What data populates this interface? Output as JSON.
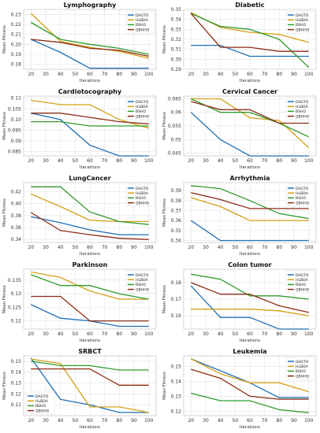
{
  "colors": {
    "DAGTO": "#1f6fb4",
    "HLBDA": "#d4a017",
    "BSHO": "#2e9a2e",
    "QBHHO": "#8b2c14",
    "IGWO_alt": "#8b2c8b"
  },
  "chart_data": [
    {
      "type": "line",
      "title": "Lymphography",
      "xlabel": "Iterations",
      "ylabel": "Mean Fitness",
      "x": [
        20,
        40,
        60,
        80,
        100
      ],
      "xticks": [
        20,
        30,
        40,
        50,
        60,
        70,
        80,
        90,
        100
      ],
      "ylim": [
        0.175,
        0.235
      ],
      "yticks": [
        0.18,
        0.19,
        0.2,
        0.21,
        0.22,
        0.23
      ],
      "legend": "top-right",
      "series": [
        {
          "name": "DAGTO",
          "values": [
            0.205,
            0.192,
            0.176,
            0.176,
            0.176
          ]
        },
        {
          "name": "HLBDA",
          "values": [
            0.231,
            0.203,
            0.197,
            0.193,
            0.186
          ]
        },
        {
          "name": "BSHO",
          "values": [
            0.222,
            0.205,
            0.2,
            0.196,
            0.19
          ]
        },
        {
          "name": "QBHHO",
          "values": [
            0.205,
            0.202,
            0.196,
            0.194,
            0.188
          ]
        }
      ]
    },
    {
      "type": "line",
      "title": "Diabetic",
      "xlabel": "Iterations",
      "ylabel": "Mean Fitness",
      "x": [
        20,
        40,
        60,
        80,
        100
      ],
      "xticks": [
        20,
        30,
        40,
        50,
        60,
        70,
        80,
        90,
        100
      ],
      "ylim": [
        0.29,
        0.35
      ],
      "yticks": [
        0.29,
        0.3,
        0.31,
        0.32,
        0.33,
        0.34,
        0.35
      ],
      "legend": "top-right",
      "series": [
        {
          "name": "DAGTO",
          "values": [
            0.314,
            0.314,
            0.303,
            0.303,
            0.303
          ]
        },
        {
          "name": "HLBDA",
          "values": [
            0.347,
            0.332,
            0.327,
            0.325,
            0.317
          ]
        },
        {
          "name": "BSHO",
          "values": [
            0.346,
            0.333,
            0.33,
            0.32,
            0.292
          ]
        },
        {
          "name": "QBHHO",
          "values": [
            0.346,
            0.312,
            0.312,
            0.308,
            0.308
          ]
        }
      ]
    },
    {
      "type": "line",
      "title": "Cardiotocography",
      "xlabel": "Iterations",
      "ylabel": "Mean Fitness",
      "x": [
        20,
        40,
        60,
        80,
        100
      ],
      "xticks": [
        20,
        30,
        40,
        50,
        60,
        70,
        80,
        90,
        100
      ],
      "ylim": [
        0.083,
        0.111
      ],
      "yticks": [
        0.085,
        0.09,
        0.095,
        0.1,
        0.105,
        0.11
      ],
      "legend": "top-right",
      "series": [
        {
          "name": "DAGTO",
          "values": [
            0.103,
            0.1,
            0.088,
            0.083,
            0.083
          ]
        },
        {
          "name": "HLBDA",
          "values": [
            0.109,
            0.107,
            0.107,
            0.1,
            0.096
          ]
        },
        {
          "name": "BSHO",
          "values": [
            0.099,
            0.099,
            0.097,
            0.097,
            0.097
          ]
        },
        {
          "name": "QBHHO",
          "values": [
            0.103,
            0.103,
            0.101,
            0.099,
            0.098
          ]
        }
      ]
    },
    {
      "type": "line",
      "title": "Cervical Cancer",
      "xlabel": "Iterations",
      "ylabel": "Mean Fitness",
      "x": [
        20,
        40,
        60,
        80,
        100
      ],
      "xticks": [
        20,
        30,
        40,
        50,
        60,
        70,
        80,
        90,
        100
      ],
      "ylim": [
        0.044,
        0.066
      ],
      "yticks": [
        0.045,
        0.05,
        0.055,
        0.06,
        0.065
      ],
      "legend": "top-right",
      "series": [
        {
          "name": "DAGTO",
          "values": [
            0.06,
            0.05,
            0.044,
            0.044,
            0.044
          ]
        },
        {
          "name": "HLBDA",
          "values": [
            0.065,
            0.065,
            0.058,
            0.057,
            0.047
          ]
        },
        {
          "name": "BSHO",
          "values": [
            0.065,
            0.06,
            0.06,
            0.056,
            0.051
          ]
        },
        {
          "name": "QBHHO",
          "values": [
            0.064,
            0.061,
            0.061,
            0.056,
            0.056
          ]
        }
      ]
    },
    {
      "type": "line",
      "title": "LungCancer",
      "xlabel": "Iterations",
      "ylabel": "Mean Fitness",
      "x": [
        20,
        40,
        60,
        80,
        100
      ],
      "xticks": [
        20,
        30,
        40,
        50,
        60,
        70,
        80,
        90,
        100
      ],
      "ylim": [
        0.335,
        0.435
      ],
      "yticks": [
        0.34,
        0.36,
        0.38,
        0.4,
        0.42
      ],
      "legend": "top-right",
      "series": [
        {
          "name": "DAGTO",
          "values": [
            0.378,
            0.368,
            0.356,
            0.348,
            0.348
          ]
        },
        {
          "name": "HLBDA",
          "values": [
            0.416,
            0.395,
            0.372,
            0.37,
            0.37
          ]
        },
        {
          "name": "BSHO",
          "values": [
            0.428,
            0.428,
            0.386,
            0.37,
            0.365
          ]
        },
        {
          "name": "QBHHO",
          "values": [
            0.385,
            0.355,
            0.348,
            0.342,
            0.34
          ]
        }
      ]
    },
    {
      "type": "line",
      "title": "Arrhythmia",
      "xlabel": "Iterations",
      "ylabel": "Mean Fitness",
      "x": [
        20,
        40,
        60,
        80,
        100
      ],
      "xticks": [
        20,
        30,
        40,
        50,
        60,
        70,
        80,
        90,
        100
      ],
      "ylim": [
        0.338,
        0.398
      ],
      "yticks": [
        0.34,
        0.35,
        0.36,
        0.37,
        0.38,
        0.39
      ],
      "legend": "top-right",
      "series": [
        {
          "name": "DAGTO",
          "values": [
            0.36,
            0.34,
            0.34,
            0.34,
            0.34
          ]
        },
        {
          "name": "HLBDA",
          "values": [
            0.383,
            0.374,
            0.36,
            0.36,
            0.36
          ]
        },
        {
          "name": "BSHO",
          "values": [
            0.395,
            0.392,
            0.38,
            0.367,
            0.362
          ]
        },
        {
          "name": "QBHHO",
          "values": [
            0.388,
            0.381,
            0.372,
            0.372,
            0.372
          ]
        }
      ]
    },
    {
      "type": "line",
      "title": "Parkinson",
      "xlabel": "Iterations",
      "ylabel": "Mean Fitness",
      "x": [
        20,
        40,
        60,
        80,
        100
      ],
      "xticks": [
        20,
        30,
        40,
        50,
        60,
        70,
        80,
        90,
        100
      ],
      "ylim": [
        0.117,
        0.139
      ],
      "yticks": [
        0.12,
        0.125,
        0.13,
        0.135
      ],
      "legend": "top-right",
      "series": [
        {
          "name": "DAGTO",
          "values": [
            0.126,
            0.121,
            0.12,
            0.118,
            0.118
          ]
        },
        {
          "name": "HLBDA",
          "values": [
            0.138,
            0.136,
            0.131,
            0.128,
            0.128
          ]
        },
        {
          "name": "BSHO",
          "values": [
            0.137,
            0.133,
            0.133,
            0.13,
            0.128
          ]
        },
        {
          "name": "QBHHO",
          "values": [
            0.129,
            0.129,
            0.12,
            0.12,
            0.12
          ]
        }
      ]
    },
    {
      "type": "line",
      "title": "Colon tumor",
      "xlabel": "Iterations",
      "ylabel": "Mean Fitness",
      "x": [
        20,
        40,
        60,
        80,
        100
      ],
      "xticks": [
        20,
        30,
        40,
        50,
        60,
        70,
        80,
        90,
        100
      ],
      "ylim": [
        0.152,
        0.188
      ],
      "yticks": [
        0.16,
        0.17,
        0.18
      ],
      "legend": "top-right",
      "series": [
        {
          "name": "DAGTO",
          "values": [
            0.178,
            0.159,
            0.159,
            0.152,
            0.152
          ]
        },
        {
          "name": "HLBDA",
          "values": [
            0.164,
            0.164,
            0.164,
            0.163,
            0.16
          ]
        },
        {
          "name": "BSHO",
          "values": [
            0.185,
            0.182,
            0.172,
            0.172,
            0.17
          ]
        },
        {
          "name": "QBHHO",
          "values": [
            0.18,
            0.173,
            0.173,
            0.166,
            0.162
          ]
        }
      ]
    },
    {
      "type": "line",
      "title": "SRBCT",
      "xlabel": "Iterations",
      "ylabel": "Mean Fitness",
      "x": [
        20,
        40,
        60,
        80,
        100
      ],
      "xticks": [
        20,
        30,
        40,
        50,
        60,
        70,
        80,
        90,
        100
      ],
      "ylim": [
        0.1,
        0.155
      ],
      "yticks": [
        0.11,
        0.12,
        0.13,
        0.14,
        0.15
      ],
      "legend": "bottom-left",
      "series": [
        {
          "name": "DAGTO",
          "values": [
            0.153,
            0.115,
            0.11,
            0.103,
            0.103
          ]
        },
        {
          "name": "HLBDA",
          "values": [
            0.152,
            0.148,
            0.108,
            0.108,
            0.103
          ]
        },
        {
          "name": "BSHO",
          "values": [
            0.15,
            0.146,
            0.146,
            0.142,
            0.142
          ]
        },
        {
          "name": "QBHHO",
          "values": [
            0.143,
            0.143,
            0.143,
            0.128,
            0.128
          ]
        }
      ]
    },
    {
      "type": "line",
      "title": "Leukemia",
      "xlabel": "Iterations",
      "ylabel": "Mean Fitness",
      "x": [
        20,
        40,
        60,
        80,
        100
      ],
      "xticks": [
        20,
        30,
        40,
        50,
        60,
        70,
        80,
        90,
        100
      ],
      "ylim": [
        0.117,
        0.157
      ],
      "yticks": [
        0.12,
        0.13,
        0.14,
        0.15
      ],
      "legend": "top-right",
      "series": [
        {
          "name": "DAGTO",
          "values": [
            0.155,
            0.147,
            0.139,
            0.129,
            0.129
          ]
        },
        {
          "name": "HLBDA",
          "values": [
            0.155,
            0.145,
            0.139,
            0.139,
            0.133
          ]
        },
        {
          "name": "BSHO",
          "values": [
            0.132,
            0.127,
            0.127,
            0.121,
            0.119
          ]
        },
        {
          "name": "QBHHO",
          "values": [
            0.148,
            0.142,
            0.13,
            0.128,
            0.128
          ]
        }
      ]
    }
  ]
}
